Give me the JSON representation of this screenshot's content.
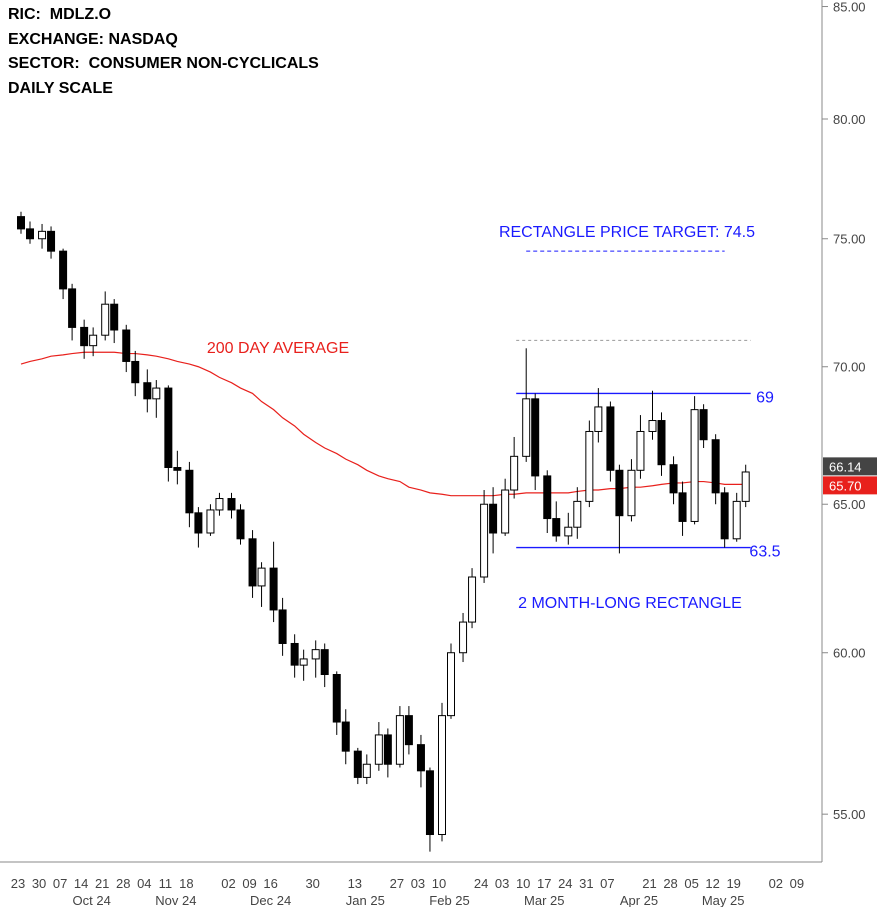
{
  "chart_data": {
    "type": "candlestick",
    "header": [
      "RIC:  MDLZ.O",
      "EXCHANGE: NASDAQ",
      "SECTOR:  CONSUMER NON-CYCLICALS",
      "DAILY SCALE"
    ],
    "categories": [
      "23",
      "30",
      "07",
      "14",
      "21",
      "28",
      "04",
      "11",
      "18",
      null,
      "02",
      "09",
      "16",
      null,
      "30",
      null,
      "13",
      null,
      "27",
      "03",
      "10",
      null,
      "24",
      "03",
      "10",
      "17",
      "24",
      "31",
      "07",
      null,
      "21",
      "28",
      "05",
      "12",
      "19",
      null,
      "02",
      "09"
    ],
    "months": [
      {
        "value": 3.5,
        "label": "Oct 24"
      },
      {
        "value": 7.5,
        "label": "Nov 24"
      },
      {
        "value": 12,
        "label": "Dec 24"
      },
      {
        "value": 16.5,
        "label": "Jan 25"
      },
      {
        "value": 20.5,
        "label": "Feb 25"
      },
      {
        "value": 25,
        "label": "Mar 25"
      },
      {
        "value": 29.5,
        "label": "Apr 25"
      },
      {
        "value": 33.5,
        "label": "May 25"
      }
    ],
    "open": [
      75.9,
      75.4,
      75.0,
      75.3,
      74.5,
      73.0,
      71.5,
      70.8,
      71.2,
      72.4,
      71.4,
      70.2,
      69.4,
      68.8,
      69.2,
      66.3,
      66.2,
      64.7,
      64.0,
      64.8,
      65.2,
      64.8,
      63.8,
      62.2,
      62.8,
      61.4,
      60.3,
      59.6,
      59.8,
      60.1,
      59.3,
      57.8,
      56.9,
      56.1,
      56.5,
      57.4,
      56.5,
      58.0,
      57.1,
      56.3,
      54.4,
      58.0,
      60.0,
      61.0,
      62.5,
      65.0,
      64.0,
      65.5,
      66.7,
      68.8,
      66.0,
      64.5,
      63.9,
      64.2,
      65.1,
      67.6,
      68.5,
      66.2,
      64.6,
      66.2,
      67.6,
      68.0,
      66.4,
      65.4,
      64.4,
      68.4,
      67.3,
      65.4,
      63.8,
      65.1,
      null,
      null,
      null,
      null,
      null,
      null
    ],
    "high": [
      76.1,
      75.7,
      75.6,
      75.5,
      74.6,
      73.2,
      71.8,
      71.5,
      72.9,
      72.6,
      71.6,
      70.6,
      69.9,
      69.5,
      69.3,
      66.9,
      66.5,
      64.9,
      65.0,
      65.4,
      65.4,
      65.0,
      64.1,
      63.0,
      63.7,
      61.8,
      60.6,
      60.1,
      60.4,
      60.3,
      59.4,
      58.2,
      57.0,
      56.8,
      57.8,
      57.6,
      58.3,
      58.3,
      57.4,
      56.4,
      58.4,
      60.3,
      61.3,
      62.8,
      65.5,
      65.6,
      65.9,
      67.4,
      70.7,
      69.0,
      66.2,
      65.1,
      64.7,
      65.6,
      68.0,
      69.2,
      68.7,
      66.4,
      66.6,
      68.2,
      69.1,
      68.3,
      66.7,
      65.8,
      68.9,
      68.6,
      67.5,
      65.6,
      65.4,
      66.4,
      null,
      null,
      null,
      null,
      null,
      null
    ],
    "low": [
      75.2,
      74.8,
      74.6,
      74.2,
      72.6,
      71.0,
      70.3,
      70.4,
      71.0,
      70.9,
      69.8,
      68.9,
      68.3,
      68.1,
      65.8,
      65.7,
      64.2,
      63.5,
      63.9,
      64.6,
      64.5,
      63.6,
      61.8,
      61.5,
      61.0,
      59.9,
      59.2,
      59.1,
      59.2,
      58.9,
      57.4,
      56.5,
      55.9,
      55.9,
      56.3,
      56.1,
      56.4,
      56.8,
      55.8,
      53.9,
      54.2,
      57.9,
      59.7,
      60.8,
      62.3,
      63.3,
      63.9,
      65.2,
      66.5,
      65.5,
      64.0,
      63.7,
      63.6,
      63.8,
      64.9,
      67.2,
      65.8,
      63.3,
      64.4,
      65.9,
      67.3,
      66.0,
      65.0,
      63.9,
      64.3,
      67.0,
      65.0,
      63.5,
      63.7,
      64.9,
      null,
      null,
      null,
      null,
      null,
      null
    ],
    "close": [
      75.4,
      75.0,
      75.3,
      74.5,
      73.0,
      71.5,
      70.8,
      71.2,
      72.4,
      71.4,
      70.2,
      69.4,
      68.8,
      69.2,
      66.3,
      66.2,
      64.7,
      64.0,
      64.8,
      65.2,
      64.8,
      63.8,
      62.2,
      62.8,
      61.4,
      60.3,
      59.6,
      59.8,
      60.1,
      59.3,
      57.8,
      56.9,
      56.1,
      56.5,
      57.4,
      56.5,
      58.0,
      57.1,
      56.3,
      54.4,
      58.0,
      60.0,
      61.0,
      62.5,
      65.0,
      64.0,
      65.5,
      66.7,
      68.8,
      66.0,
      64.5,
      63.9,
      64.2,
      65.1,
      67.6,
      68.5,
      66.2,
      64.6,
      66.2,
      67.6,
      68.0,
      66.4,
      65.4,
      64.4,
      68.4,
      67.3,
      65.4,
      63.8,
      65.1,
      66.14,
      null,
      null,
      null,
      null,
      null,
      null
    ],
    "moving_average": {
      "name": "200 DAY AVERAGE",
      "color": "#e8201c",
      "last_label": "65.70",
      "values": [
        70.1,
        70.2,
        70.3,
        70.4,
        70.45,
        70.5,
        70.55,
        70.55,
        70.55,
        70.55,
        70.5,
        70.5,
        70.45,
        70.4,
        70.3,
        70.2,
        70.1,
        70.0,
        69.8,
        69.6,
        69.4,
        69.2,
        69.0,
        68.7,
        68.4,
        68.1,
        67.8,
        67.5,
        67.2,
        67.0,
        66.8,
        66.6,
        66.4,
        66.2,
        66.0,
        65.9,
        65.8,
        65.6,
        65.5,
        65.4,
        65.35,
        65.3,
        65.3,
        65.3,
        65.3,
        65.3,
        65.35,
        65.35,
        65.4,
        65.4,
        65.4,
        65.4,
        65.4,
        65.45,
        65.5,
        65.5,
        65.55,
        65.55,
        65.6,
        65.6,
        65.65,
        65.7,
        65.75,
        65.75,
        65.8,
        65.8,
        65.75,
        65.7,
        65.7,
        65.7,
        null,
        null,
        null,
        null,
        null,
        null
      ]
    },
    "rectangle": {
      "label": "2 MONTH-LONG RECTANGLE",
      "top": 69,
      "bottom": 63.5,
      "from": 48,
      "to": 69
    },
    "target": {
      "label": "RECTANGLE PRICE TARGET: 74.5",
      "value": 74.5,
      "from": 48,
      "to": 67
    },
    "breakout_level": {
      "value": 71,
      "from": 48,
      "to": 69
    },
    "ylim": [
      53.6,
      85.3
    ],
    "log_scale": true,
    "yticks": [
      {
        "value": 55,
        "label": "55.00"
      },
      {
        "value": 60,
        "label": "60.00"
      },
      {
        "value": 65,
        "label": "65.00"
      },
      {
        "value": 70,
        "label": "70.00"
      },
      {
        "value": 75,
        "label": "75.00"
      },
      {
        "value": 80,
        "label": "80.00"
      },
      {
        "value": 85,
        "label": "85.00"
      }
    ]
  }
}
